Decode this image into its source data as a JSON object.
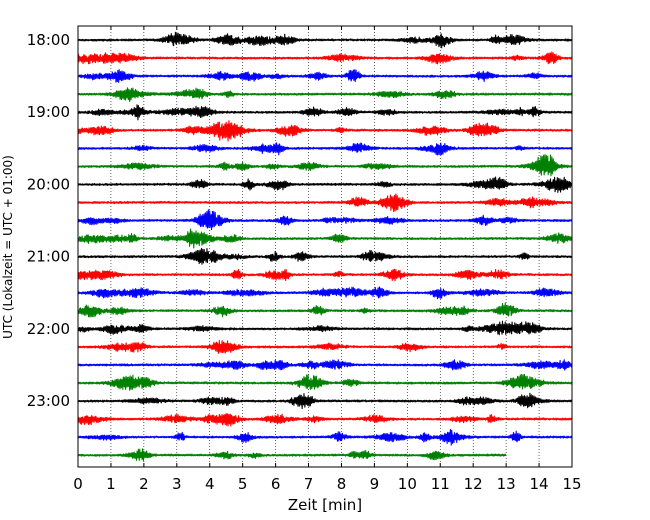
{
  "chart_data": {
    "type": "line",
    "title": "",
    "xlabel": "Zeit  [min]",
    "ylabel": "UTC (Lokalzeit = UTC + 01:00)",
    "xlim": [
      0,
      15
    ],
    "x_ticks": [
      "0",
      "1",
      "2",
      "3",
      "4",
      "5",
      "6",
      "7",
      "8",
      "9",
      "10",
      "11",
      "12",
      "13",
      "14",
      "15"
    ],
    "y_tick_labels": [
      "18:00",
      "19:00",
      "20:00",
      "21:00",
      "22:00",
      "23:00"
    ],
    "trace_colors": [
      "#000000",
      "#ff0000",
      "#0000ff",
      "#008000"
    ],
    "trace_count": 24,
    "trace_interval_min": 15,
    "trace_start": "18:00",
    "last_trace_end_min": 13.0,
    "grid": {
      "vertical": true,
      "style": "dotted"
    },
    "events": [
      {
        "trace_start": "19:15",
        "from_min": 3.0,
        "to_min": 7.2,
        "peak_min": 4.5,
        "relative_amplitude": 3.5
      }
    ]
  }
}
